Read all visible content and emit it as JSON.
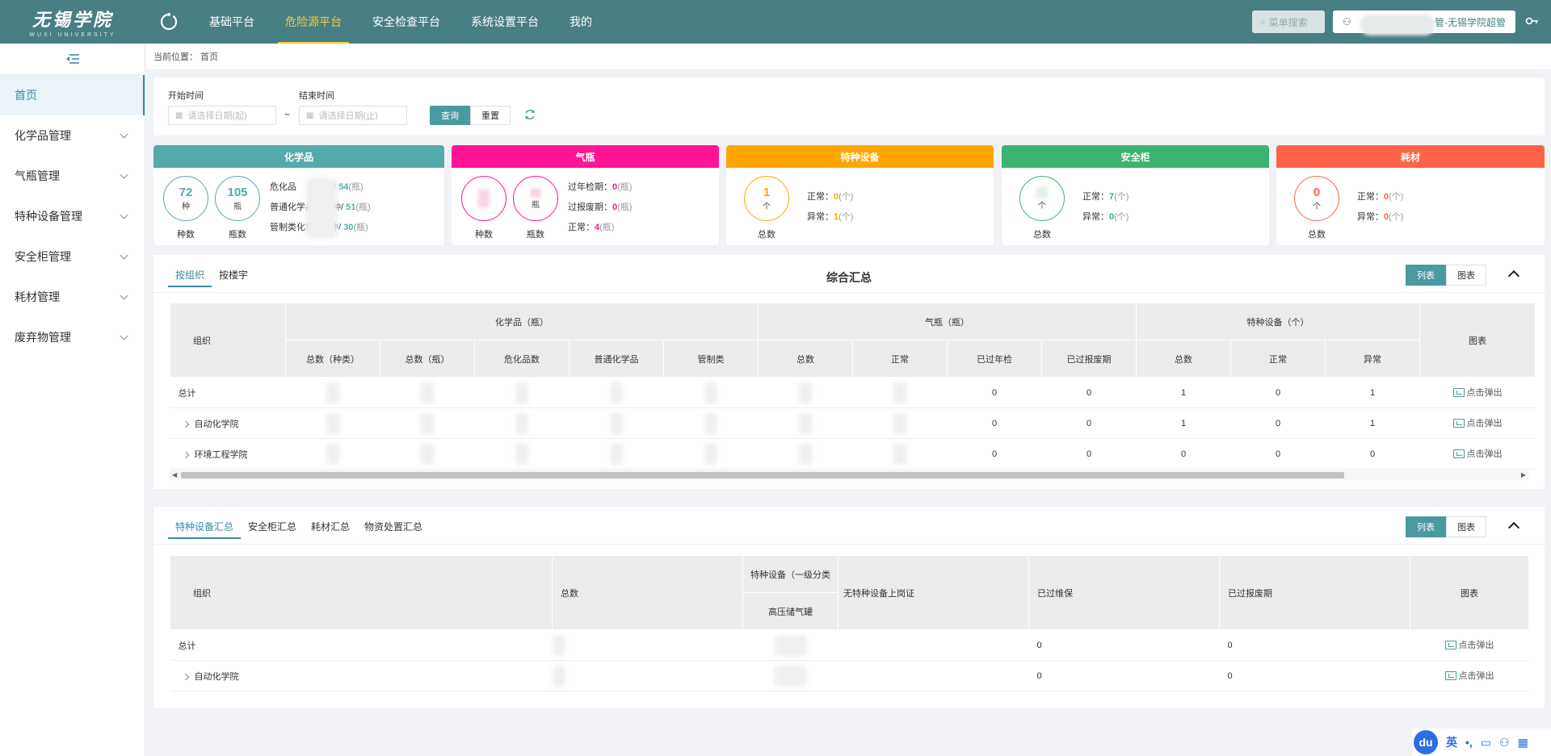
{
  "app": {
    "logo_cn": "无锡学院",
    "logo_en": "WUXI UNIVERSITY"
  },
  "nav": {
    "items": [
      "基础平台",
      "危险源平台",
      "安全检查平台",
      "系统设置平台",
      "我的"
    ],
    "active": "危险源平台"
  },
  "header": {
    "search_placeholder": "菜单搜索",
    "user_label": "管-无锡学院超管",
    "logout_icon": "key-icon"
  },
  "sidebar": {
    "items": [
      {
        "label": "首页",
        "active": true
      },
      {
        "label": "化学品管理"
      },
      {
        "label": "气瓶管理"
      },
      {
        "label": "特种设备管理"
      },
      {
        "label": "安全柜管理"
      },
      {
        "label": "耗材管理"
      },
      {
        "label": "废弃物管理"
      }
    ]
  },
  "breadcrumb": "当前位置： 首页",
  "filter": {
    "start_label": "开始时间",
    "end_label": "结束时间",
    "start_placeholder": "请选择日期(起)",
    "end_placeholder": "请选择日期(止)",
    "tilde": "~",
    "query": "查询",
    "reset": "重置"
  },
  "cards": {
    "chemical": {
      "title": "化学品",
      "color": "#55aaaa",
      "c1_num": "72",
      "c1_unit": "种",
      "c1_label": "种数",
      "c2_num": "105",
      "c2_unit": "瓶",
      "c2_label": "瓶数",
      "l1_prefix": "危化品",
      "l1_mid": "/",
      "l1_val": "54",
      "l1_unit": "(瓶)",
      "l2_prefix": "普通化学品",
      "l2_mid": "种/",
      "l2_val": "51",
      "l2_unit": "(瓶)",
      "l3_prefix": "管制类化学品",
      "l3_mid": "种/",
      "l3_val": "30",
      "l3_unit": "(瓶)"
    },
    "gas": {
      "title": "气瓶",
      "color": "#ff1493",
      "c1_label": "种数",
      "c2_unit": "瓶",
      "c2_label": "瓶数",
      "l1_prefix": "过年检期：",
      "l1_val": "0",
      "l1_unit": "(瓶)",
      "l2_prefix": "过报废期：",
      "l2_val": "0",
      "l2_unit": "(瓶)",
      "l3_prefix": "正常：",
      "l3_val": "4",
      "l3_unit": "(瓶)"
    },
    "special": {
      "title": "特种设备",
      "color": "#ffa500",
      "c1_num": "1",
      "c1_unit": "个",
      "c1_label": "总数",
      "l1_prefix": "正常：",
      "l1_val": "0",
      "l1_unit": "(个)",
      "l2_prefix": "异常：",
      "l2_val": "1",
      "l2_unit": "(个)"
    },
    "cabinet": {
      "title": "安全柜",
      "color": "#3cb371",
      "c1_unit": "个",
      "c1_label": "总数",
      "l1_prefix": "正常：",
      "l1_val": "7",
      "l1_unit": "(个)",
      "l2_prefix": "异常：",
      "l2_val": "0",
      "l2_unit": "(个)"
    },
    "consumable": {
      "title": "耗材",
      "color": "#ff6347",
      "c1_num": "0",
      "c1_unit": "个",
      "c1_label": "总数",
      "l1_prefix": "正常：",
      "l1_val": "0",
      "l1_unit": "(个)",
      "l2_prefix": "异常：",
      "l2_val": "0",
      "l2_unit": "(个)"
    }
  },
  "summary": {
    "tabs": [
      "按组织",
      "按楼宇"
    ],
    "title": "综合汇总",
    "view_list": "列表",
    "view_chart": "图表",
    "head_org": "组织",
    "group_chem": "化学品（瓶）",
    "group_gas": "气瓶（瓶）",
    "group_special": "特种设备（个）",
    "head_chart": "图表",
    "sub_heads": [
      "总数（种类）",
      "总数（瓶）",
      "危化品数",
      "普通化学品",
      "管制类",
      "总数",
      "正常",
      "已过年检",
      "已过报废期",
      "总数",
      "正常",
      "异常"
    ],
    "rows": [
      {
        "org": "总计",
        "overdue_check": "0",
        "overdue_scrap": "0",
        "sp_total": "1",
        "sp_normal": "0",
        "sp_abnormal": "1",
        "popup": "点击弹出"
      },
      {
        "org": "自动化学院",
        "overdue_check": "0",
        "overdue_scrap": "0",
        "sp_total": "1",
        "sp_normal": "0",
        "sp_abnormal": "1",
        "popup": "点击弹出"
      },
      {
        "org": "环境工程学院",
        "overdue_check": "0",
        "overdue_scrap": "0",
        "sp_total": "0",
        "sp_normal": "0",
        "sp_abnormal": "0",
        "popup": "点击弹出"
      }
    ]
  },
  "special_summary": {
    "tabs": [
      "特种设备汇总",
      "安全柜汇总",
      "耗材汇总",
      "物资处置汇总"
    ],
    "view_list": "列表",
    "view_chart": "图表",
    "head_org": "组织",
    "head_total": "总数",
    "head_class": "特种设备（一级分类",
    "head_sub": "高压储气罐",
    "head_nocert": "无特种设备上岗证",
    "head_maint": "已过维保",
    "head_scrap": "已过报废期",
    "head_chart": "图表",
    "rows": [
      {
        "org": "总计",
        "maint": "0",
        "scrap": "0",
        "popup": "点击弹出"
      },
      {
        "org": "自动化学院",
        "maint": "0",
        "scrap": "0",
        "popup": "点击弹出"
      }
    ]
  },
  "ime": {
    "du": "du",
    "en": "英"
  }
}
